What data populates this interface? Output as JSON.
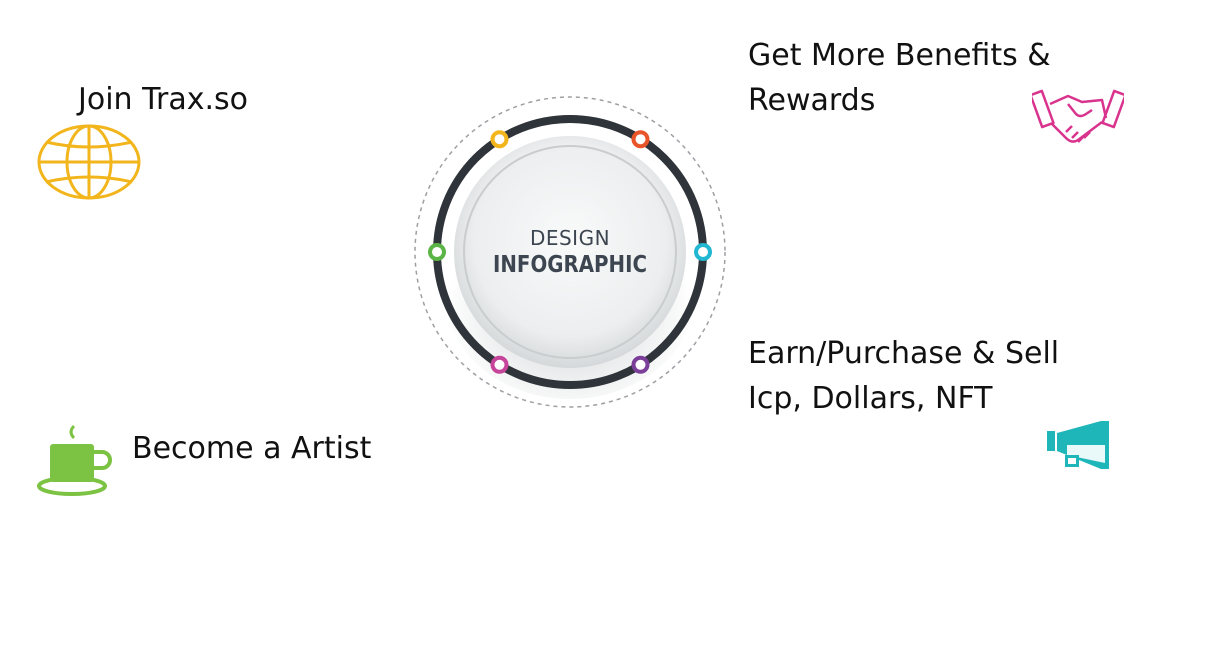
{
  "hub": {
    "title": "DESIGN",
    "subtitle": "INFOGRAPHIC",
    "dot_colors": [
      "#f2b51c",
      "#e9552b",
      "#21b6d1",
      "#7b3f9a",
      "#c6459a",
      "#5bb546"
    ]
  },
  "items": [
    {
      "lines": [
        "Join Trax.so"
      ],
      "icon": "globe-icon",
      "color": "#f2b51c"
    },
    {
      "lines": [
        "Become a Artist"
      ],
      "icon": "cup-icon",
      "color": "#7cc243"
    },
    {
      "lines": [
        "Get More Benefits &",
        "Rewards"
      ],
      "icon": "handshake-icon",
      "color": "#d9338e"
    },
    {
      "lines": [
        "Earn/Purchase & Sell",
        "Icp, Dollars, NFT"
      ],
      "icon": "megaphone-icon",
      "color": "#1fb6b9"
    }
  ]
}
